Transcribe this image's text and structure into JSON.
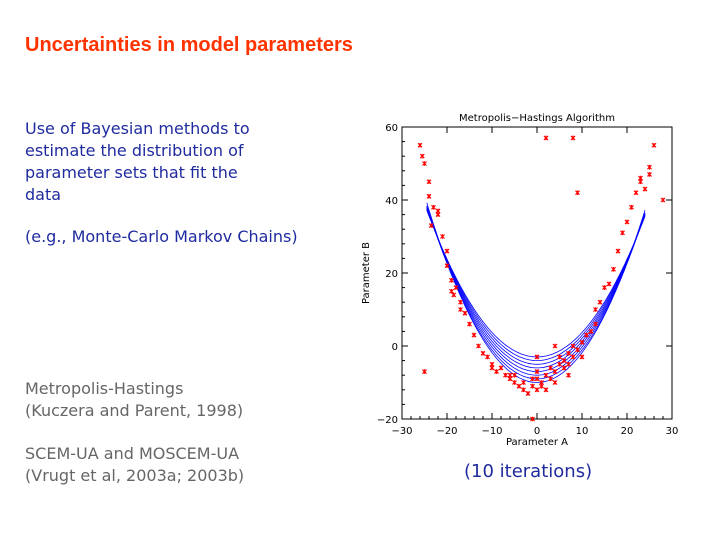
{
  "slide": {
    "title": "Uncertainties in model parameters",
    "bullet_lines": [
      "Use of Bayesian methods to",
      "estimate the distribution of",
      "parameter sets that fit the",
      "data"
    ],
    "example": "(e.g., Monte-Carlo Markov Chains)",
    "ref1_lines": [
      "Metropolis-Hastings",
      "(Kuczera and Parent, 1998)"
    ],
    "ref2_lines": [
      "SCEM-UA and MOSCEM-UA",
      "(Vrugt et al, 2003a; 2003b)"
    ],
    "caption": "(10 iterations)"
  },
  "colors": {
    "title": "#ff3300",
    "text_blue": "#1f2b9f",
    "text_gray": "#666666",
    "points": "#ff0000",
    "curves": "#0000ff"
  },
  "chart_data": {
    "type": "scatter",
    "title": "Metropolis−Hastings Algorithm",
    "xlabel": "Parameter A",
    "ylabel": "Parameter B",
    "xlim": [
      -30,
      30
    ],
    "ylim": [
      -20,
      60
    ],
    "xticks": [
      "−30",
      "−20",
      "−10",
      "0",
      "10",
      "20",
      "30"
    ],
    "xtick_values": [
      -30,
      -20,
      -10,
      0,
      10,
      20,
      30
    ],
    "yticks": [
      "−20",
      "0",
      "20",
      "40",
      "60"
    ],
    "ytick_values": [
      -20,
      0,
      20,
      40,
      60
    ],
    "series": [
      {
        "kind": "points",
        "x": [
          -26,
          -25.5,
          -25,
          -24,
          -24,
          -23.5,
          -23,
          -22,
          -22,
          -21,
          -20,
          -20,
          -19,
          -19,
          -18.5,
          -18,
          -17,
          -17,
          -16,
          -15,
          -14,
          -13,
          -12,
          -11,
          -10,
          -10,
          -9,
          -8,
          -7,
          -6,
          -6,
          -5,
          -5,
          -4,
          -3,
          -3,
          -2,
          -1,
          -1,
          0,
          0,
          0,
          0,
          1,
          1,
          2,
          2,
          3,
          3,
          4,
          4,
          4,
          5,
          5,
          6,
          6,
          7,
          7,
          7,
          8,
          8,
          9,
          10,
          10,
          11,
          12,
          13,
          13,
          14,
          15,
          16,
          17,
          18,
          19,
          20,
          21,
          22,
          23,
          23,
          24,
          25,
          25,
          26,
          28,
          -25,
          -1,
          2,
          8,
          9
        ],
        "y": [
          55,
          52,
          50,
          45,
          41,
          33,
          38,
          37,
          36,
          30,
          26,
          22,
          18,
          15,
          14,
          16,
          12,
          10,
          9,
          6,
          3,
          0,
          -2,
          -3,
          -5,
          -6,
          -7,
          -6,
          -8,
          -9,
          -8,
          -10,
          -8,
          -11,
          -12,
          -10,
          -13,
          -9,
          -11,
          -12,
          -7,
          -9,
          -3,
          -11,
          -10,
          -12,
          -8,
          -9,
          -6,
          -10,
          -7,
          0,
          -3,
          -5,
          -6,
          -4,
          -8,
          -5,
          -2,
          -3,
          0,
          -1,
          -3,
          1,
          3,
          4,
          6,
          10,
          12,
          16,
          17,
          21,
          26,
          31,
          34,
          38,
          42,
          46,
          45,
          43,
          47,
          49,
          55,
          40,
          -7,
          -20,
          57,
          57,
          42
        ]
      },
      {
        "kind": "curves",
        "equation": "y = a*x^2 + b",
        "a": [
          0.082,
          0.079,
          0.077,
          0.075,
          0.073,
          0.071,
          0.069,
          0.067
        ],
        "b": [
          -10,
          -9,
          -8,
          -7,
          -6,
          -5,
          -4,
          -3
        ]
      }
    ]
  }
}
